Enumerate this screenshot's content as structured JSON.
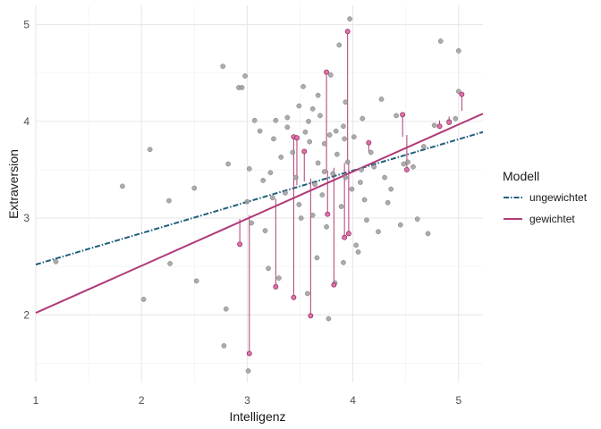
{
  "chart_data": {
    "type": "scatter",
    "xlabel": "Intelligenz",
    "ylabel": "Extraversion",
    "xlim": [
      1.0,
      5.23
    ],
    "ylim": [
      1.3,
      5.2
    ],
    "x_ticks": [
      "1",
      "2",
      "3",
      "4",
      "5"
    ],
    "y_ticks": [
      "2",
      "3",
      "4",
      "5"
    ],
    "grid": true,
    "legend": {
      "title": "Modell",
      "placement": "right",
      "entries": [
        {
          "label": "ungewichtet",
          "color": "#1f5f7a",
          "style": "dash-dot"
        },
        {
          "label": "gewichtet",
          "color": "#b03a78",
          "style": "solid"
        }
      ]
    },
    "colors": {
      "points": "#9e9e9e",
      "highlight_points": "#e070a8",
      "unweighted_line": "#1f5f7a",
      "weighted_line": "#b03a78"
    },
    "lines": [
      {
        "name": "ungewichtet",
        "x": [
          1.0,
          5.23
        ],
        "y": [
          2.52,
          3.89
        ]
      },
      {
        "name": "gewichtet",
        "x": [
          1.0,
          5.23
        ],
        "y": [
          2.02,
          4.08
        ]
      }
    ],
    "points": [
      [
        1.19,
        2.55
      ],
      [
        1.82,
        3.33
      ],
      [
        2.02,
        2.16
      ],
      [
        2.08,
        3.71
      ],
      [
        2.26,
        3.18
      ],
      [
        2.27,
        2.53
      ],
      [
        2.5,
        3.31
      ],
      [
        2.52,
        2.35
      ],
      [
        2.77,
        4.57
      ],
      [
        2.8,
        2.06
      ],
      [
        2.82,
        3.56
      ],
      [
        2.92,
        4.35
      ],
      [
        2.95,
        4.35
      ],
      [
        2.98,
        4.47
      ],
      [
        3.0,
        3.17
      ],
      [
        3.02,
        3.51
      ],
      [
        3.04,
        2.95
      ],
      [
        3.07,
        4.01
      ],
      [
        3.12,
        3.9
      ],
      [
        3.17,
        2.87
      ],
      [
        3.2,
        2.48
      ],
      [
        3.24,
        3.21
      ],
      [
        3.25,
        3.82
      ],
      [
        3.27,
        4.01
      ],
      [
        3.3,
        2.38
      ],
      [
        3.32,
        3.63
      ],
      [
        3.36,
        3.26
      ],
      [
        3.38,
        3.94
      ],
      [
        3.43,
        3.68
      ],
      [
        3.46,
        3.42
      ],
      [
        3.49,
        3.14
      ],
      [
        3.51,
        3.0
      ],
      [
        3.53,
        4.36
      ],
      [
        3.55,
        3.89
      ],
      [
        3.57,
        2.22
      ],
      [
        3.59,
        3.79
      ],
      [
        3.62,
        3.03
      ],
      [
        3.64,
        3.35
      ],
      [
        3.66,
        2.59
      ],
      [
        3.67,
        3.57
      ],
      [
        3.69,
        4.06
      ],
      [
        3.71,
        3.24
      ],
      [
        3.73,
        3.77
      ],
      [
        3.75,
        2.91
      ],
      [
        3.77,
        1.96
      ],
      [
        3.79,
        4.48
      ],
      [
        3.81,
        3.46
      ],
      [
        3.83,
        2.33
      ],
      [
        3.85,
        3.66
      ],
      [
        3.87,
        4.79
      ],
      [
        3.89,
        3.12
      ],
      [
        3.91,
        2.54
      ],
      [
        3.93,
        4.2
      ],
      [
        3.95,
        3.58
      ],
      [
        3.97,
        5.06
      ],
      [
        3.99,
        3.3
      ],
      [
        4.01,
        3.84
      ],
      [
        4.03,
        2.72
      ],
      [
        4.05,
        2.65
      ],
      [
        4.07,
        3.37
      ],
      [
        4.09,
        4.03
      ],
      [
        4.11,
        3.19
      ],
      [
        4.13,
        2.98
      ],
      [
        4.17,
        3.68
      ],
      [
        4.2,
        3.53
      ],
      [
        4.24,
        2.86
      ],
      [
        4.27,
        4.23
      ],
      [
        4.3,
        3.42
      ],
      [
        4.33,
        3.16
      ],
      [
        4.36,
        3.3
      ],
      [
        4.41,
        4.06
      ],
      [
        4.45,
        2.93
      ],
      [
        4.48,
        3.56
      ],
      [
        4.52,
        3.58
      ],
      [
        4.57,
        3.53
      ],
      [
        4.61,
        2.99
      ],
      [
        4.67,
        3.74
      ],
      [
        4.71,
        2.84
      ],
      [
        4.77,
        3.96
      ],
      [
        4.83,
        4.83
      ],
      [
        4.91,
        4.0
      ],
      [
        4.97,
        4.03
      ],
      [
        5.0,
        4.73
      ],
      [
        5.0,
        4.31
      ],
      [
        2.78,
        1.68
      ],
      [
        3.01,
        1.42
      ],
      [
        3.62,
        4.13
      ],
      [
        3.58,
        4.0
      ],
      [
        3.78,
        3.86
      ],
      [
        3.38,
        4.04
      ],
      [
        3.84,
        3.9
      ],
      [
        3.67,
        4.27
      ],
      [
        3.92,
        3.82
      ],
      [
        3.49,
        4.16
      ],
      [
        3.22,
        3.47
      ],
      [
        3.15,
        3.39
      ],
      [
        3.73,
        3.48
      ],
      [
        3.93,
        3.42
      ],
      [
        4.08,
        3.5
      ],
      [
        3.91,
        3.95
      ]
    ],
    "highlighted": [
      [
        2.93,
        2.73,
        2.99
      ],
      [
        3.02,
        1.6,
        3.03
      ],
      [
        3.27,
        2.29,
        3.2
      ],
      [
        3.44,
        3.84,
        3.32
      ],
      [
        3.44,
        2.18,
        3.32
      ],
      [
        3.47,
        3.83,
        3.34
      ],
      [
        3.54,
        3.69,
        3.38
      ],
      [
        3.6,
        1.99,
        3.41
      ],
      [
        3.75,
        4.51,
        3.48
      ],
      [
        3.76,
        3.04,
        3.49
      ],
      [
        3.82,
        2.31,
        3.52
      ],
      [
        3.92,
        2.8,
        3.57
      ],
      [
        3.95,
        4.93,
        3.59
      ],
      [
        3.96,
        2.84,
        3.59
      ],
      [
        4.15,
        3.78,
        3.69
      ],
      [
        4.47,
        4.07,
        3.84
      ],
      [
        4.51,
        3.5,
        3.86
      ],
      [
        4.82,
        3.95,
        4.01
      ],
      [
        4.91,
        3.99,
        4.05
      ],
      [
        5.03,
        4.28,
        4.11
      ]
    ]
  }
}
